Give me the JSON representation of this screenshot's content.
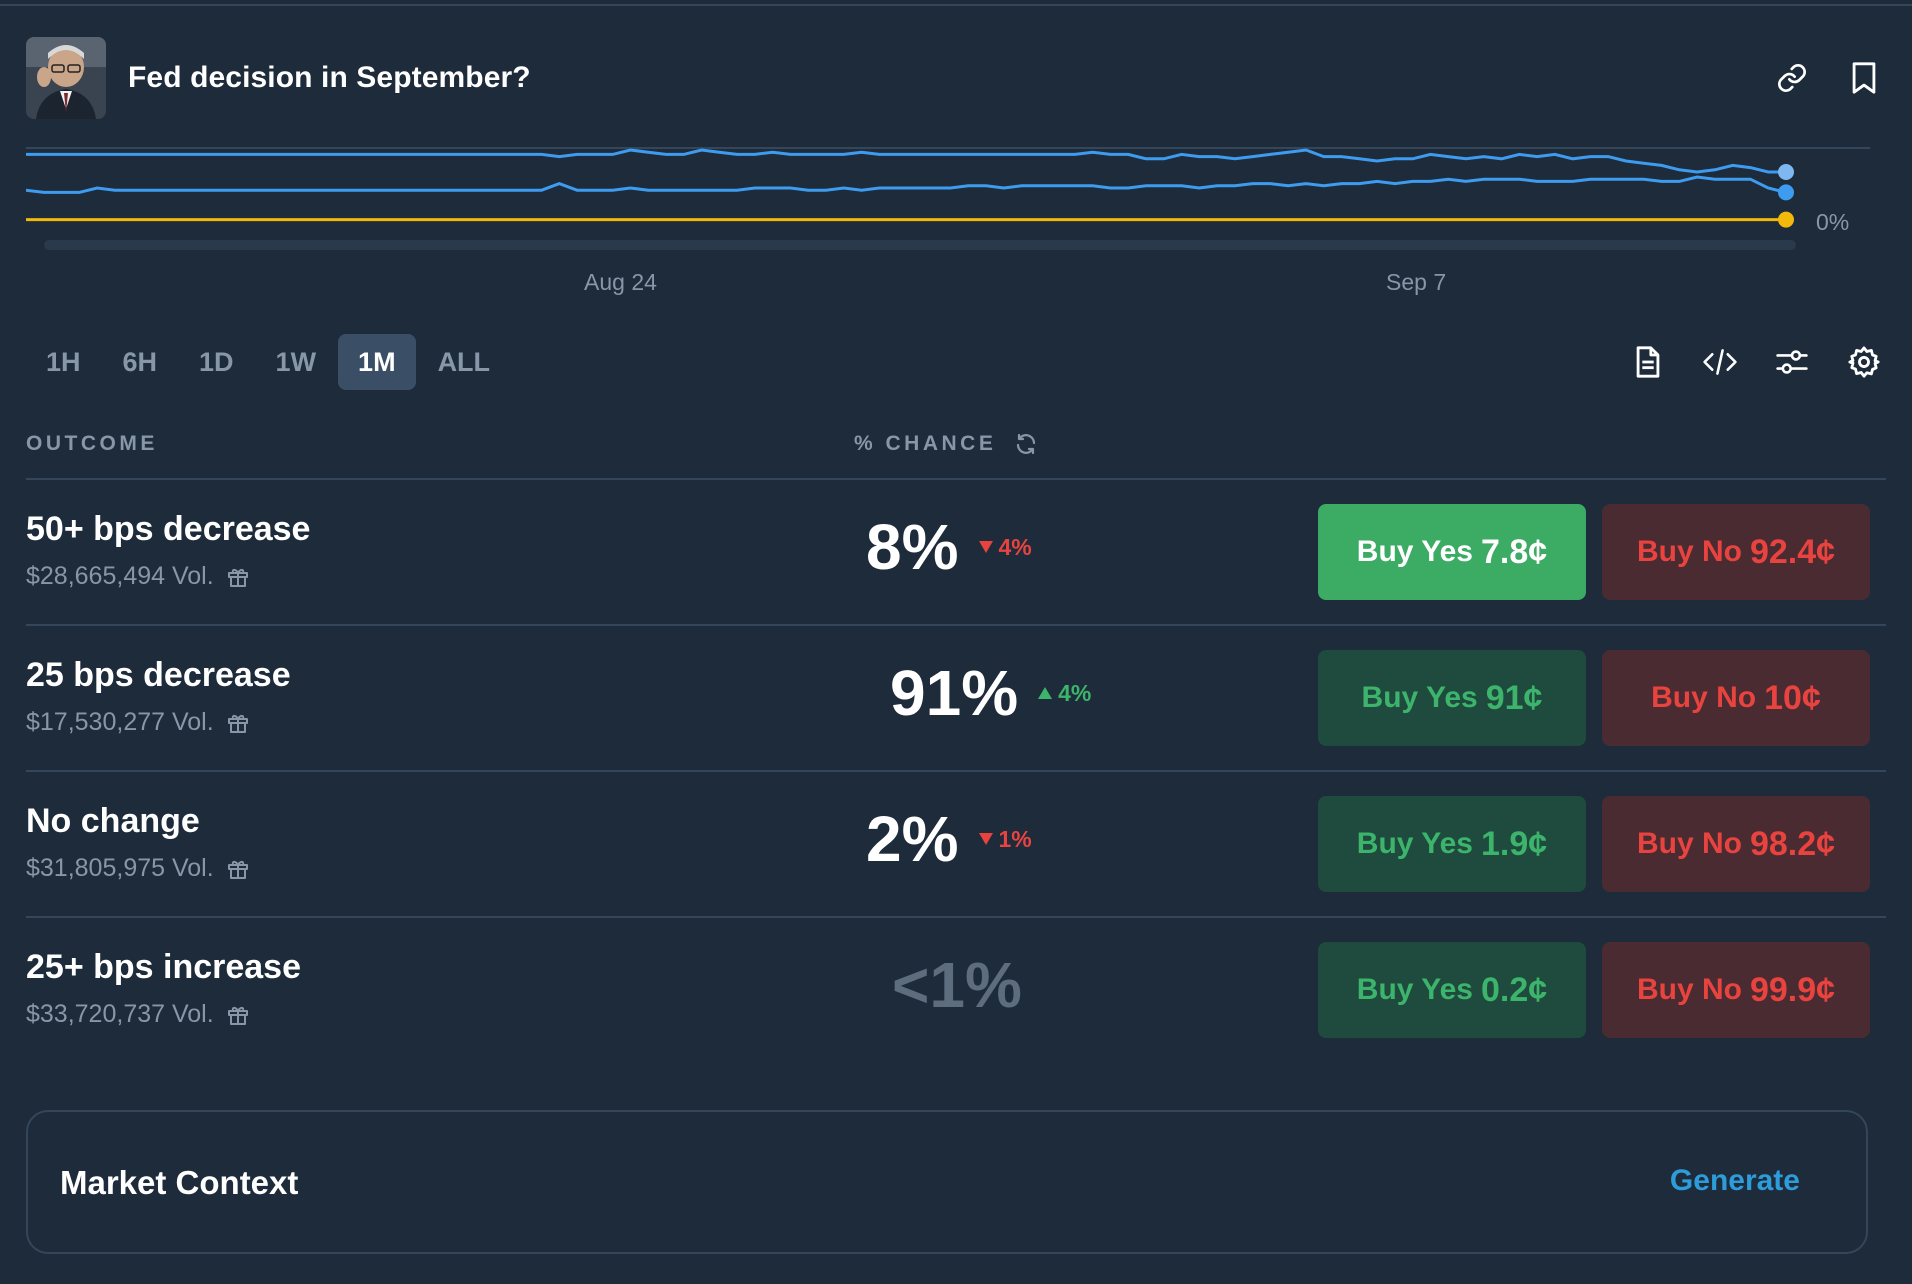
{
  "market": {
    "title": "Fed decision in September?",
    "avatar_icon": "fed-chair-portrait"
  },
  "header_actions": {
    "link_icon": "link-icon",
    "bookmark_icon": "bookmark-icon"
  },
  "chart_data": {
    "type": "line",
    "x_tick_labels": [
      "Aug 24",
      "Sep 7"
    ],
    "y_tick_labels": [
      "0%"
    ],
    "series": [
      {
        "color": "#3e9cf0",
        "values": [
          58,
          58,
          58,
          58,
          58,
          58,
          58,
          58,
          58,
          58,
          58,
          58,
          58,
          58,
          58,
          58,
          58,
          58,
          58,
          58,
          58,
          58,
          58,
          58,
          58,
          58,
          58,
          58,
          58,
          58,
          57,
          58,
          58,
          58,
          60,
          59,
          58,
          58,
          60,
          59,
          58,
          58,
          59,
          58,
          58,
          58,
          58,
          59,
          58,
          58,
          58,
          58,
          58,
          58,
          58,
          58,
          58,
          58,
          58,
          58,
          59,
          58,
          58,
          56,
          56,
          58,
          57,
          57,
          56,
          57,
          58,
          59,
          60,
          57,
          57,
          56,
          55,
          56,
          56,
          58,
          57,
          56,
          57,
          56,
          58,
          57,
          58,
          56,
          57,
          57,
          55,
          54,
          53,
          51,
          50,
          51,
          53,
          52,
          50,
          50
        ]
      },
      {
        "color": "#3e9cf0",
        "values": [
          9,
          8,
          8,
          8,
          10,
          9,
          9,
          9,
          9,
          9,
          9,
          9,
          9,
          9,
          9,
          9,
          9,
          9,
          9,
          9,
          9,
          9,
          9,
          9,
          9,
          9,
          9,
          9,
          9,
          9,
          12,
          9,
          9,
          9,
          10,
          9,
          9,
          9,
          9,
          9,
          9,
          10,
          10,
          10,
          9,
          9,
          10,
          9,
          10,
          10,
          10,
          10,
          10,
          11,
          11,
          10,
          11,
          11,
          11,
          11,
          11,
          10,
          10,
          11,
          11,
          11,
          10,
          11,
          11,
          12,
          12,
          11,
          12,
          11,
          12,
          12,
          13,
          12,
          13,
          13,
          14,
          13,
          14,
          14,
          14,
          13,
          13,
          13,
          14,
          14,
          14,
          14,
          13,
          13,
          15,
          14,
          14,
          14,
          10,
          8
        ]
      },
      {
        "color": "#f0b90b",
        "values": [
          2,
          2,
          2,
          2,
          2,
          2,
          2,
          2,
          2,
          2,
          2,
          2,
          2,
          2,
          2,
          2,
          2,
          2,
          2,
          2,
          2,
          2,
          2,
          2,
          2,
          2,
          2,
          2,
          2,
          2,
          2,
          2,
          2,
          2,
          2,
          2,
          2,
          2,
          2,
          2,
          2,
          2,
          2,
          2,
          2,
          2,
          2,
          2,
          2,
          2,
          2,
          2,
          2,
          2,
          2,
          2,
          2,
          2,
          2,
          2,
          2,
          2,
          2,
          2,
          2,
          2,
          2,
          2,
          2,
          2,
          2,
          2,
          2,
          2,
          2,
          2,
          2,
          2,
          2,
          2,
          2,
          2,
          2,
          2,
          2,
          2,
          2,
          2,
          2,
          2,
          2,
          2,
          2,
          2,
          2,
          2,
          2,
          2,
          2,
          2
        ]
      }
    ]
  },
  "range_tabs": [
    "1H",
    "6H",
    "1D",
    "1W",
    "1M",
    "ALL"
  ],
  "active_range": "1M",
  "toolbar_icons": [
    "document-icon",
    "code-icon",
    "sliders-icon",
    "gear-icon"
  ],
  "table": {
    "col_outcome": "OUTCOME",
    "col_chance": "% CHANCE",
    "rows": [
      {
        "name": "50+ bps decrease",
        "volume": "$28,665,494 Vol.",
        "chance": "8%",
        "delta": "4%",
        "delta_dir": "down",
        "yes_label": "Buy Yes",
        "yes_price": "7.8¢",
        "no_label": "Buy No",
        "no_price": "92.4¢"
      },
      {
        "name": "25 bps decrease",
        "volume": "$17,530,277 Vol.",
        "chance": "91%",
        "delta": "4%",
        "delta_dir": "up",
        "yes_label": "Buy Yes",
        "yes_price": "91¢",
        "no_label": "Buy No",
        "no_price": "10¢"
      },
      {
        "name": "No change",
        "volume": "$31,805,975 Vol.",
        "chance": "2%",
        "delta": "1%",
        "delta_dir": "down",
        "yes_label": "Buy Yes",
        "yes_price": "1.9¢",
        "no_label": "Buy No",
        "no_price": "98.2¢"
      },
      {
        "name": "25+ bps increase",
        "volume": "$33,720,737 Vol.",
        "chance": "<1%",
        "delta": "",
        "delta_dir": "",
        "yes_label": "Buy Yes",
        "yes_price": "0.2¢",
        "no_label": "Buy No",
        "no_price": "99.9¢"
      }
    ]
  },
  "context": {
    "title": "Market Context",
    "action": "Generate"
  },
  "colors": {
    "bg": "#1d2b3a",
    "green": "#3cb46b",
    "red": "#e8433f",
    "blue": "#2d9cdb"
  }
}
